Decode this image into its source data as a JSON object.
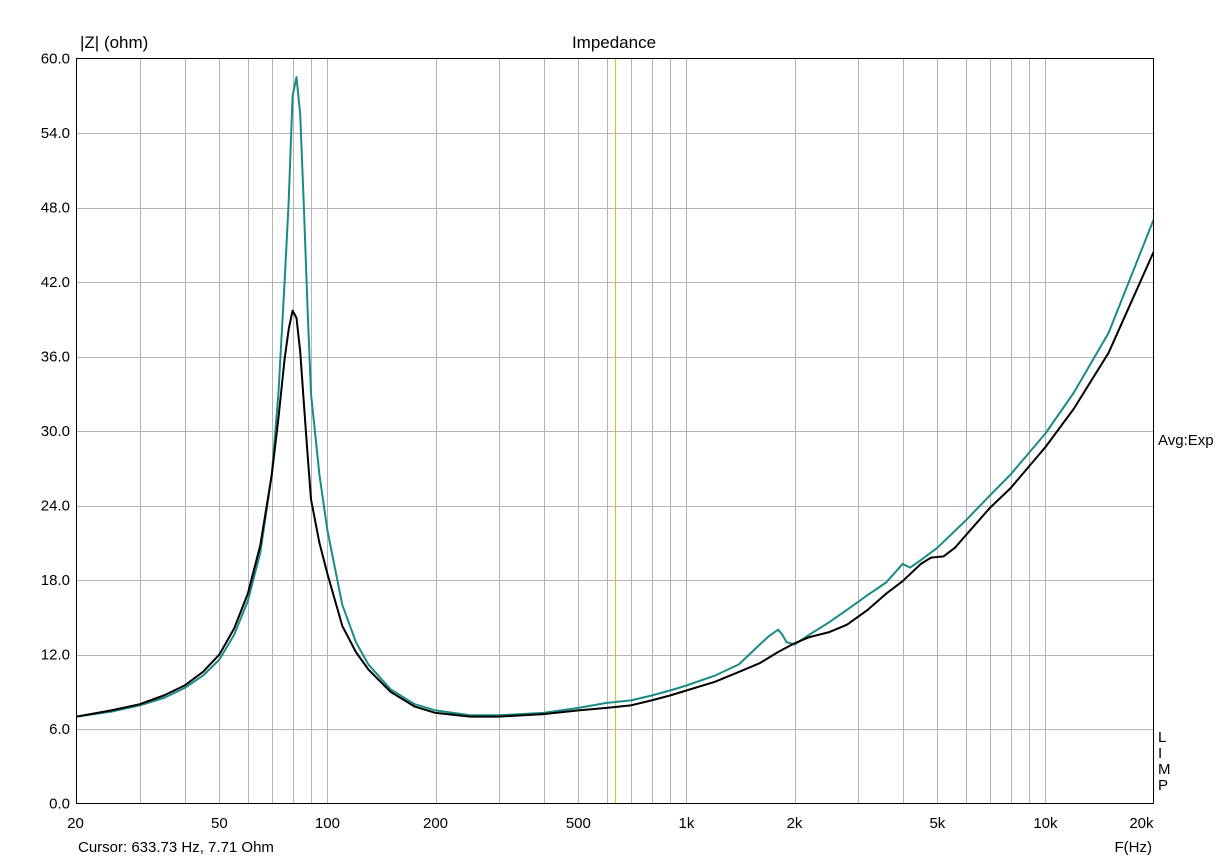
{
  "chart_data": {
    "type": "line",
    "title": "Impedance",
    "ylabel": "|Z| (ohm)",
    "xlabel": "F(Hz)",
    "xscale": "log",
    "xlim": [
      20,
      20000
    ],
    "ylim": [
      0,
      60
    ],
    "grid": true,
    "x_ticks": [
      20,
      50,
      100,
      200,
      500,
      1000,
      2000,
      5000,
      10000,
      20000
    ],
    "x_tick_labels": [
      "20",
      "50",
      "100",
      "200",
      "500",
      "1k",
      "2k",
      "5k",
      "10k",
      "20k"
    ],
    "y_ticks": [
      0,
      6,
      12,
      18,
      24,
      30,
      36,
      42,
      48,
      54,
      60
    ],
    "y_tick_labels": [
      "0.0",
      "6.0",
      "12.0",
      "18.0",
      "24.0",
      "30.0",
      "36.0",
      "42.0",
      "48.0",
      "54.0",
      "60.0"
    ],
    "cursor": {
      "x": 633.73,
      "label": "Cursor: 633.73 Hz, 7.71 Ohm",
      "color": "#d4c43a"
    },
    "side_label_avg": "Avg:Exp",
    "side_label_limp": [
      "L",
      "I",
      "M",
      "P"
    ],
    "series": [
      {
        "color": "#1a8a86",
        "x": [
          20,
          25,
          30,
          35,
          40,
          45,
          50,
          55,
          60,
          65,
          70,
          73,
          76,
          78,
          80,
          82,
          84,
          86,
          88,
          90,
          95,
          100,
          110,
          120,
          130,
          150,
          175,
          200,
          250,
          300,
          400,
          500,
          600,
          700,
          800,
          900,
          1000,
          1200,
          1400,
          1600,
          1700,
          1800,
          1850,
          1900,
          2000,
          2200,
          2500,
          2800,
          3200,
          3600,
          4000,
          4200,
          4500,
          5000,
          6000,
          7000,
          8000,
          10000,
          12000,
          15000,
          20000
        ],
        "y": [
          7.0,
          7.4,
          7.9,
          8.5,
          9.3,
          10.3,
          11.6,
          13.6,
          16.3,
          20.2,
          26.5,
          33.0,
          42.0,
          48.5,
          57.0,
          58.5,
          55.5,
          48.0,
          40.0,
          33.0,
          26.5,
          22.0,
          16.0,
          13.0,
          11.2,
          9.2,
          8.0,
          7.5,
          7.1,
          7.1,
          7.3,
          7.7,
          8.1,
          8.3,
          8.7,
          9.1,
          9.5,
          10.3,
          11.2,
          12.8,
          13.5,
          14.0,
          13.6,
          13.0,
          12.8,
          13.6,
          14.6,
          15.6,
          16.8,
          17.8,
          19.3,
          19.0,
          19.6,
          20.6,
          22.8,
          24.8,
          26.5,
          29.8,
          33.1,
          37.9,
          47.0
        ]
      },
      {
        "color": "#000000",
        "x": [
          20,
          25,
          30,
          35,
          40,
          45,
          50,
          55,
          60,
          65,
          70,
          73,
          76,
          78,
          80,
          82,
          84,
          86,
          88,
          90,
          95,
          100,
          110,
          120,
          130,
          150,
          175,
          200,
          250,
          300,
          400,
          500,
          600,
          700,
          800,
          900,
          1000,
          1200,
          1400,
          1600,
          1800,
          2000,
          2200,
          2500,
          2800,
          3200,
          3600,
          4000,
          4500,
          4800,
          5200,
          5600,
          6000,
          7000,
          8000,
          10000,
          12000,
          15000,
          20000
        ],
        "y": [
          7.0,
          7.5,
          8.0,
          8.7,
          9.5,
          10.6,
          12.0,
          14.1,
          16.9,
          20.8,
          26.5,
          31.0,
          35.8,
          38.2,
          39.7,
          39.1,
          36.4,
          32.2,
          28.2,
          24.5,
          21.0,
          18.5,
          14.3,
          12.2,
          10.8,
          9.0,
          7.8,
          7.3,
          7.0,
          7.0,
          7.2,
          7.5,
          7.7,
          7.9,
          8.3,
          8.7,
          9.1,
          9.8,
          10.6,
          11.3,
          12.2,
          12.9,
          13.4,
          13.8,
          14.4,
          15.6,
          16.9,
          17.9,
          19.3,
          19.8,
          19.9,
          20.6,
          21.6,
          23.8,
          25.4,
          28.7,
          31.8,
          36.3,
          44.4
        ]
      }
    ]
  }
}
